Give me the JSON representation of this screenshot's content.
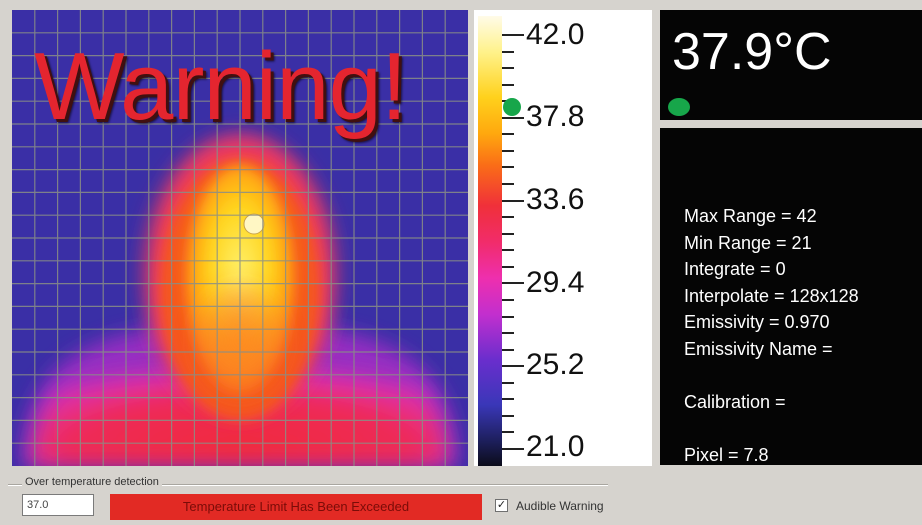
{
  "thermal_view": {
    "warning_text": "Warning!",
    "grid_columns": 20,
    "grid_rows": 20
  },
  "color_scale": {
    "labels": [
      "42.0",
      "37.8",
      "33.6",
      "29.4",
      "25.2",
      "21.0"
    ],
    "marker_color": "#17a64a"
  },
  "temperature_panel": {
    "reading": "37.9°C",
    "indicator_color": "#17a64a"
  },
  "info_panel": {
    "lines": [
      "Max Range = 42",
      "Min Range = 21",
      "Integrate = 0",
      "Interpolate = 128x128",
      "Emissivity = 0.970",
      "Emissivity Name =",
      "",
      "Calibration =",
      "",
      "Pixel = 7.8"
    ]
  },
  "bottom_bar": {
    "group_label": "Over temperature detection",
    "threshold_value": "37.0",
    "alert_message": "Temperature Limit Has Been Exceeded",
    "audible_label": "Audible Warning",
    "audible_checked": true
  },
  "colors": {
    "alert_red": "#e22a24",
    "warning_red": "#e4252f",
    "background_blue": "#3a2fa6"
  }
}
